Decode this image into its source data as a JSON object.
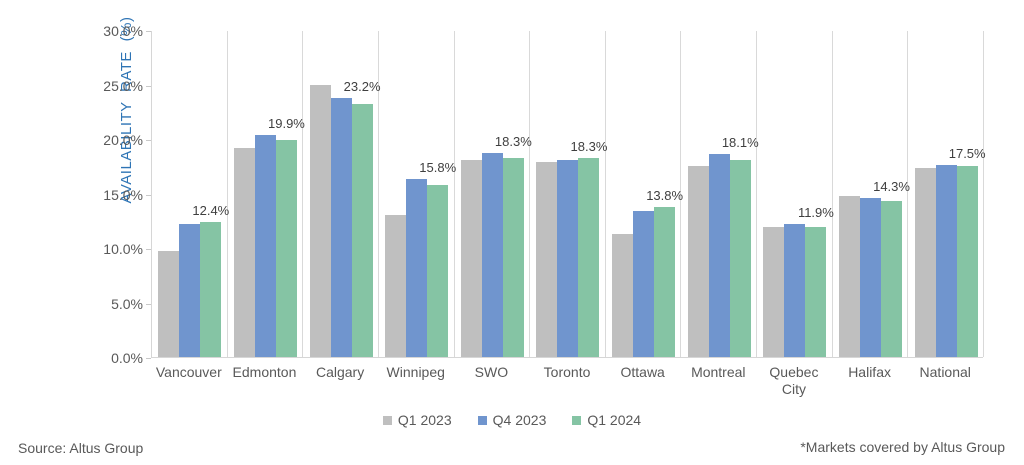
{
  "chart_data": {
    "type": "bar",
    "title": "",
    "ylabel": "AVAILABILITY RATE (%)",
    "xlabel": "",
    "ylim": [
      0,
      30
    ],
    "ytick_step": 5,
    "ytick_labels": [
      "0.0%",
      "5.0%",
      "10.0%",
      "15.0%",
      "20.0%",
      "25.0%",
      "30.0%"
    ],
    "grid": "vertical-only",
    "legend_position": "bottom",
    "categories": [
      "Vancouver",
      "Edmonton",
      "Calgary",
      "Winnipeg",
      "SWO",
      "Toronto",
      "Ottawa",
      "Montreal",
      "Quebec City",
      "Halifax",
      "National"
    ],
    "series": [
      {
        "name": "Q1 2023",
        "color": "#bfbfbf",
        "values": [
          9.7,
          19.2,
          25.0,
          13.0,
          18.1,
          17.9,
          11.3,
          17.5,
          11.9,
          14.8,
          17.3
        ]
      },
      {
        "name": "Q4 2023",
        "color": "#7095ce",
        "values": [
          12.2,
          20.4,
          23.8,
          16.3,
          18.7,
          18.1,
          13.4,
          18.6,
          12.2,
          14.6,
          17.6
        ]
      },
      {
        "name": "Q1 2024",
        "color": "#85c4a4",
        "values": [
          12.4,
          19.9,
          23.2,
          15.8,
          18.3,
          18.3,
          13.8,
          18.1,
          11.9,
          14.3,
          17.5
        ]
      }
    ],
    "data_labels": [
      "12.4%",
      "19.9%",
      "23.2%",
      "15.8%",
      "18.3%",
      "18.3%",
      "13.8%",
      "18.1%",
      "11.9%",
      "14.3%",
      "17.5%"
    ]
  },
  "footer": {
    "source": "Source: Altus Group",
    "note": "*Markets covered by Altus Group"
  }
}
